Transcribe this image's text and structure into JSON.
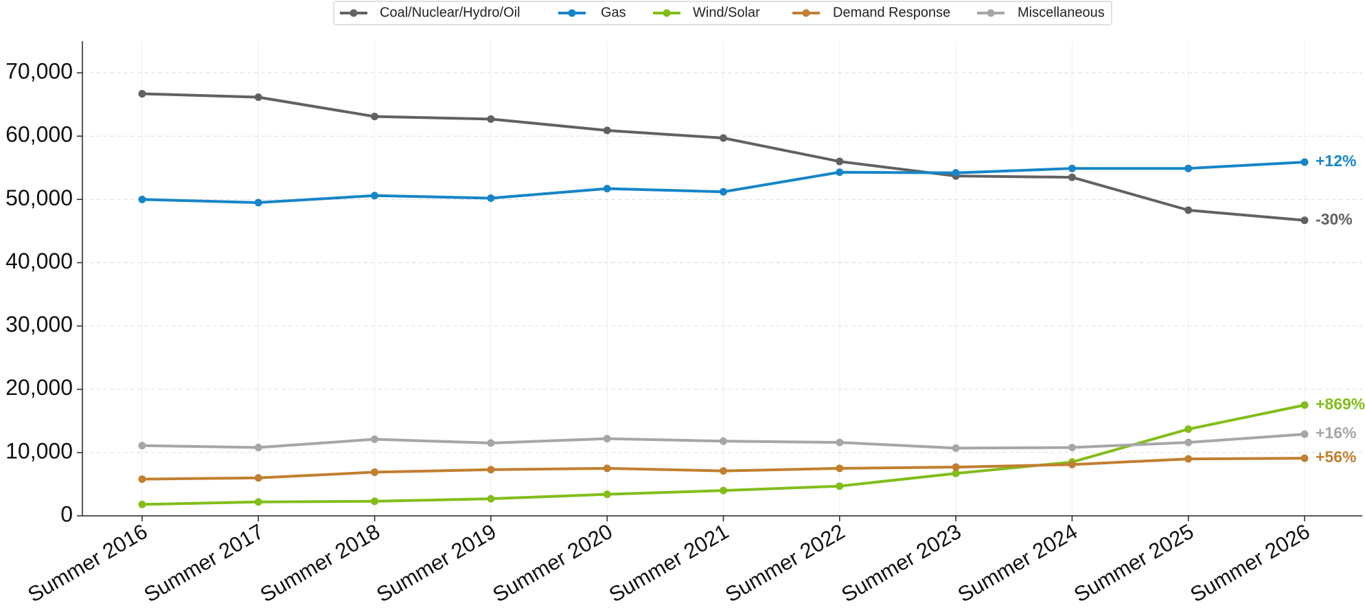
{
  "chart_data": {
    "type": "line",
    "categories": [
      "Summer 2016",
      "Summer 2017",
      "Summer 2018",
      "Summer 2019",
      "Summer 2020",
      "Summer 2021",
      "Summer 2022",
      "Summer 2023",
      "Summer 2024",
      "Summer 2025",
      "Summer 2026"
    ],
    "series": [
      {
        "name": "Coal/Nuclear/Hydro/Oil",
        "color": "#616161",
        "label": "-30%",
        "values": [
          66700,
          66150,
          63100,
          62700,
          60900,
          59700,
          56000,
          53700,
          53500,
          48300,
          46700
        ]
      },
      {
        "name": "Gas",
        "color": "#1685c8",
        "label": "+12%",
        "values": [
          50000,
          49500,
          50600,
          50200,
          51700,
          51200,
          54300,
          54200,
          54900,
          54900,
          55900
        ]
      },
      {
        "name": "Wind/Solar",
        "color": "#82bd1a",
        "label": "+869%",
        "values": [
          1800,
          2200,
          2300,
          2700,
          3400,
          4000,
          4700,
          6700,
          8500,
          13700,
          17500
        ]
      },
      {
        "name": "Demand Response",
        "color": "#c17f30",
        "label": "+56%",
        "values": [
          5800,
          6000,
          6900,
          7300,
          7500,
          7100,
          7500,
          7700,
          8100,
          9000,
          9100
        ]
      },
      {
        "name": "Miscellaneous",
        "color": "#a6a6a6",
        "label": "+16%",
        "values": [
          11100,
          10800,
          12100,
          11500,
          12200,
          11800,
          11600,
          10700,
          10800,
          11600,
          12900
        ]
      }
    ],
    "ylim": [
      0,
      75000
    ],
    "yticks": [
      0,
      {
        "value": 10000,
        "label": "10,000"
      },
      {
        "value": 20000,
        "label": "20,000"
      },
      {
        "value": 30000,
        "label": "30,000"
      },
      {
        "value": 40000,
        "label": "40,000"
      },
      {
        "value": 50000,
        "label": "50,000"
      },
      {
        "value": 60000,
        "label": "60,000"
      },
      {
        "value": 70000,
        "label": "70,000"
      }
    ],
    "grid": true,
    "legend": "top"
  }
}
